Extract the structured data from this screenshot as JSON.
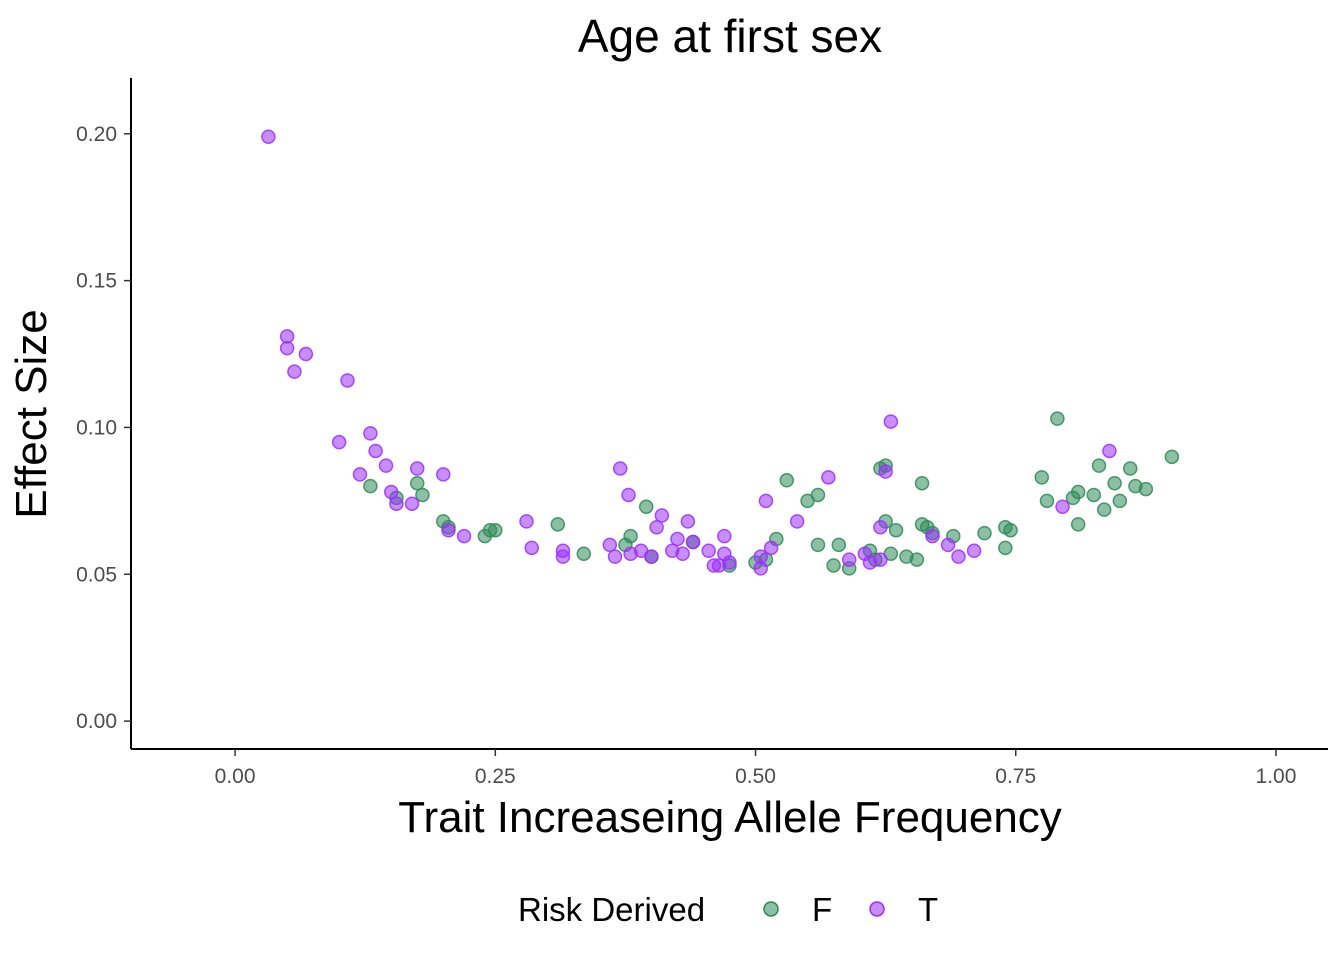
{
  "chart_data": {
    "type": "scatter",
    "title": "Age at first sex",
    "xlabel": "Trait Increaseing Allele Frequency",
    "ylabel": "Effect Size",
    "xlim": [
      -0.1,
      1.05
    ],
    "ylim": [
      -0.0095,
      0.219
    ],
    "x_ticks": [
      0.0,
      0.25,
      0.5,
      0.75,
      1.0
    ],
    "x_tick_labels": [
      "0.00",
      "0.25",
      "0.50",
      "0.75",
      "1.00"
    ],
    "y_ticks": [
      0.0,
      0.05,
      0.1,
      0.15,
      0.2
    ],
    "y_tick_labels": [
      "0.00",
      "0.05",
      "0.10",
      "0.15",
      "0.20"
    ],
    "grid": false,
    "legend": {
      "title": "Risk Derived",
      "placement": "bottom",
      "entries": [
        "F",
        "T"
      ]
    },
    "series": [
      {
        "name": "F",
        "color": "#2e8b57",
        "points": [
          [
            0.13,
            0.08
          ],
          [
            0.155,
            0.076
          ],
          [
            0.175,
            0.081
          ],
          [
            0.18,
            0.077
          ],
          [
            0.2,
            0.068
          ],
          [
            0.205,
            0.066
          ],
          [
            0.24,
            0.063
          ],
          [
            0.245,
            0.065
          ],
          [
            0.25,
            0.065
          ],
          [
            0.31,
            0.067
          ],
          [
            0.335,
            0.057
          ],
          [
            0.375,
            0.06
          ],
          [
            0.38,
            0.063
          ],
          [
            0.395,
            0.073
          ],
          [
            0.4,
            0.056
          ],
          [
            0.44,
            0.061
          ],
          [
            0.475,
            0.053
          ],
          [
            0.5,
            0.054
          ],
          [
            0.51,
            0.055
          ],
          [
            0.52,
            0.062
          ],
          [
            0.53,
            0.082
          ],
          [
            0.55,
            0.075
          ],
          [
            0.56,
            0.077
          ],
          [
            0.56,
            0.06
          ],
          [
            0.575,
            0.053
          ],
          [
            0.58,
            0.06
          ],
          [
            0.59,
            0.052
          ],
          [
            0.61,
            0.058
          ],
          [
            0.615,
            0.055
          ],
          [
            0.62,
            0.086
          ],
          [
            0.625,
            0.087
          ],
          [
            0.625,
            0.068
          ],
          [
            0.63,
            0.057
          ],
          [
            0.635,
            0.065
          ],
          [
            0.645,
            0.056
          ],
          [
            0.655,
            0.055
          ],
          [
            0.66,
            0.081
          ],
          [
            0.66,
            0.067
          ],
          [
            0.665,
            0.066
          ],
          [
            0.67,
            0.064
          ],
          [
            0.69,
            0.063
          ],
          [
            0.72,
            0.064
          ],
          [
            0.74,
            0.066
          ],
          [
            0.74,
            0.059
          ],
          [
            0.745,
            0.065
          ],
          [
            0.775,
            0.083
          ],
          [
            0.78,
            0.075
          ],
          [
            0.79,
            0.103
          ],
          [
            0.805,
            0.076
          ],
          [
            0.81,
            0.078
          ],
          [
            0.81,
            0.067
          ],
          [
            0.825,
            0.077
          ],
          [
            0.83,
            0.087
          ],
          [
            0.835,
            0.072
          ],
          [
            0.845,
            0.081
          ],
          [
            0.85,
            0.075
          ],
          [
            0.86,
            0.086
          ],
          [
            0.865,
            0.08
          ],
          [
            0.875,
            0.079
          ],
          [
            0.9,
            0.09
          ]
        ]
      },
      {
        "name": "T",
        "color": "#9b30ff",
        "points": [
          [
            0.032,
            0.199
          ],
          [
            0.05,
            0.131
          ],
          [
            0.05,
            0.127
          ],
          [
            0.057,
            0.119
          ],
          [
            0.068,
            0.125
          ],
          [
            0.1,
            0.095
          ],
          [
            0.108,
            0.116
          ],
          [
            0.12,
            0.084
          ],
          [
            0.13,
            0.098
          ],
          [
            0.135,
            0.092
          ],
          [
            0.145,
            0.087
          ],
          [
            0.15,
            0.078
          ],
          [
            0.155,
            0.074
          ],
          [
            0.17,
            0.074
          ],
          [
            0.175,
            0.086
          ],
          [
            0.2,
            0.084
          ],
          [
            0.205,
            0.065
          ],
          [
            0.22,
            0.063
          ],
          [
            0.28,
            0.068
          ],
          [
            0.285,
            0.059
          ],
          [
            0.315,
            0.058
          ],
          [
            0.315,
            0.056
          ],
          [
            0.36,
            0.06
          ],
          [
            0.365,
            0.056
          ],
          [
            0.37,
            0.086
          ],
          [
            0.378,
            0.077
          ],
          [
            0.38,
            0.057
          ],
          [
            0.39,
            0.058
          ],
          [
            0.4,
            0.056
          ],
          [
            0.405,
            0.066
          ],
          [
            0.41,
            0.07
          ],
          [
            0.42,
            0.058
          ],
          [
            0.425,
            0.062
          ],
          [
            0.43,
            0.057
          ],
          [
            0.435,
            0.068
          ],
          [
            0.44,
            0.061
          ],
          [
            0.455,
            0.058
          ],
          [
            0.46,
            0.053
          ],
          [
            0.465,
            0.053
          ],
          [
            0.47,
            0.063
          ],
          [
            0.47,
            0.057
          ],
          [
            0.475,
            0.054
          ],
          [
            0.505,
            0.056
          ],
          [
            0.505,
            0.052
          ],
          [
            0.51,
            0.075
          ],
          [
            0.515,
            0.059
          ],
          [
            0.54,
            0.068
          ],
          [
            0.57,
            0.083
          ],
          [
            0.59,
            0.055
          ],
          [
            0.605,
            0.057
          ],
          [
            0.61,
            0.054
          ],
          [
            0.62,
            0.066
          ],
          [
            0.62,
            0.055
          ],
          [
            0.625,
            0.085
          ],
          [
            0.63,
            0.102
          ],
          [
            0.67,
            0.063
          ],
          [
            0.685,
            0.06
          ],
          [
            0.695,
            0.056
          ],
          [
            0.71,
            0.058
          ],
          [
            0.795,
            0.073
          ],
          [
            0.84,
            0.092
          ]
        ]
      }
    ]
  }
}
